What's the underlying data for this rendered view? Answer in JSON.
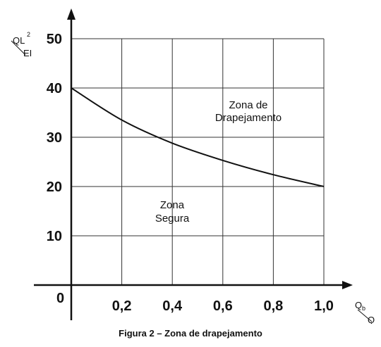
{
  "caption": "Figura 2 – Zona de drapejamento",
  "chart_data": {
    "type": "line",
    "x": [
      0,
      0.2,
      0.4,
      0.6,
      0.8,
      1.0
    ],
    "series": [
      {
        "values": [
          40,
          33.5,
          28.8,
          25.3,
          22.4,
          20
        ]
      }
    ],
    "xlim": [
      0,
      1.0
    ],
    "ylim": [
      0,
      50
    ],
    "x_ticks": [
      "0,2",
      "0,4",
      "0,6",
      "0,8",
      "1,0"
    ],
    "y_ticks": [
      "10",
      "20",
      "30",
      "40",
      "50"
    ],
    "origin_label": "0",
    "ylabel": {
      "numerator": "QL",
      "superscript": "2",
      "denominator": "EI"
    },
    "xlabel": {
      "numerator": "Q",
      "subscript": "b",
      "denominator": "Q"
    },
    "annotations": {
      "unsafe": [
        "Zona de",
        "Drapejamento"
      ],
      "safe": [
        "Zona",
        "Segura"
      ]
    },
    "grid": true,
    "colors": {
      "line": "#111111",
      "grid": "#333333"
    }
  }
}
